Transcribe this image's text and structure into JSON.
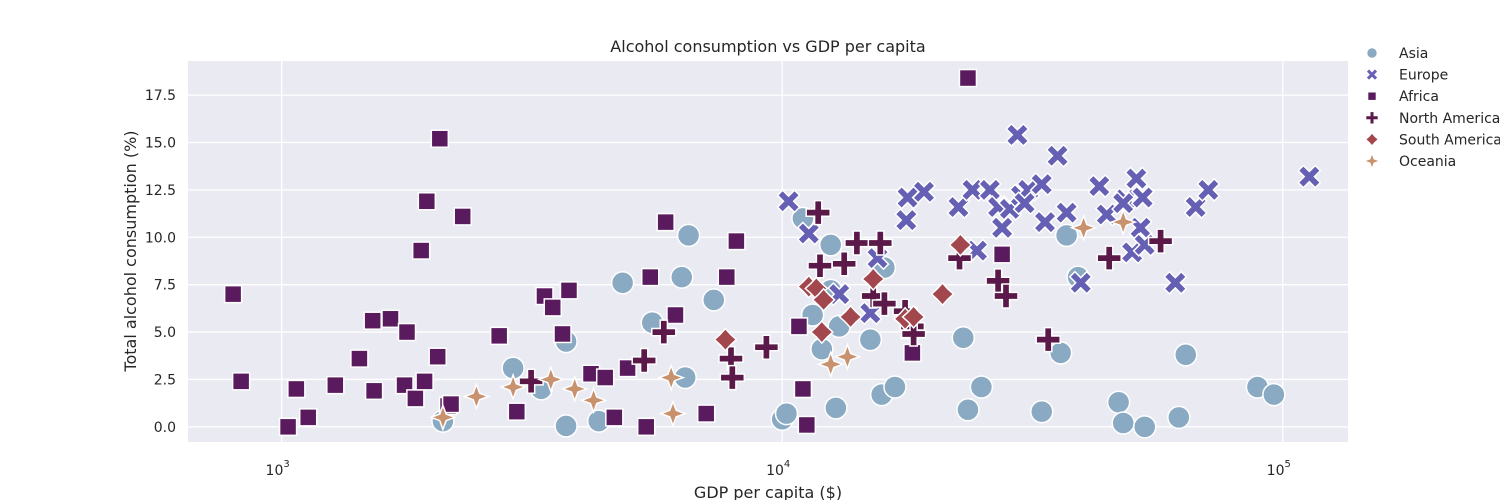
{
  "chart_data": {
    "type": "scatter",
    "title": "Alcohol consumption vs GDP per capita",
    "xlabel": "GDP per capita ($)",
    "ylabel": "Total alcohol consumption (%)",
    "xscale": "log",
    "xlim": [
      650,
      135000
    ],
    "ylim": [
      -0.8,
      19.3
    ],
    "yticks": [
      0.0,
      2.5,
      5.0,
      7.5,
      10.0,
      12.5,
      15.0,
      17.5
    ],
    "ytick_labels": [
      "0.0",
      "2.5",
      "5.0",
      "7.5",
      "10.0",
      "12.5",
      "15.0",
      "17.5"
    ],
    "xticks": [
      {
        "value": 1000,
        "base": "10",
        "exp": "3"
      },
      {
        "value": 10000,
        "base": "10",
        "exp": "4"
      },
      {
        "value": 100000,
        "base": "10",
        "exp": "5"
      }
    ],
    "grid": true,
    "background": "#eaeaf2",
    "legend_position": "outside-top-right",
    "series": [
      {
        "name": "Asia",
        "marker": "circle",
        "color": "#89aac2",
        "points": [
          [
            6500,
            10.1
          ],
          [
            11000,
            11.0
          ],
          [
            12500,
            9.6
          ],
          [
            16000,
            8.4
          ],
          [
            4800,
            7.6
          ],
          [
            6300,
            7.9
          ],
          [
            7300,
            6.7
          ],
          [
            12500,
            7.2
          ],
          [
            11500,
            5.9
          ],
          [
            5500,
            5.5
          ],
          [
            3700,
            4.5
          ],
          [
            13000,
            5.3
          ],
          [
            15000,
            4.6
          ],
          [
            2900,
            3.1
          ],
          [
            3300,
            2.0
          ],
          [
            12000,
            4.1
          ],
          [
            6400,
            2.6
          ],
          [
            10000,
            0.4
          ],
          [
            10200,
            0.7
          ],
          [
            12800,
            1.0
          ],
          [
            15800,
            1.7
          ],
          [
            16800,
            2.1
          ],
          [
            3700,
            0.05
          ],
          [
            4300,
            0.3
          ],
          [
            2100,
            0.3
          ],
          [
            23000,
            4.7
          ],
          [
            25000,
            2.1
          ],
          [
            23500,
            0.9
          ],
          [
            33000,
            0.8
          ],
          [
            36000,
            3.9
          ],
          [
            37000,
            10.1
          ],
          [
            39000,
            7.9
          ],
          [
            47000,
            1.3
          ],
          [
            48000,
            0.2
          ],
          [
            53000,
            0.0
          ],
          [
            62000,
            0.5
          ],
          [
            64000,
            3.8
          ],
          [
            89000,
            2.1
          ],
          [
            96000,
            1.7
          ]
        ]
      },
      {
        "name": "Europe",
        "marker": "x",
        "color": "#6560b4",
        "points": [
          [
            10300,
            11.9
          ],
          [
            11300,
            10.2
          ],
          [
            13000,
            7.0
          ],
          [
            15000,
            6.0
          ],
          [
            15500,
            8.9
          ],
          [
            17800,
            12.1
          ],
          [
            17700,
            10.9
          ],
          [
            19200,
            12.4
          ],
          [
            22500,
            11.6
          ],
          [
            24000,
            12.5
          ],
          [
            24500,
            9.3
          ],
          [
            26000,
            12.5
          ],
          [
            27000,
            11.6
          ],
          [
            27500,
            10.5
          ],
          [
            28500,
            11.5
          ],
          [
            30000,
            12.2
          ],
          [
            31000,
            12.5
          ],
          [
            30500,
            11.8
          ],
          [
            29500,
            15.4
          ],
          [
            33000,
            12.8
          ],
          [
            33500,
            10.8
          ],
          [
            35500,
            14.3
          ],
          [
            37000,
            11.3
          ],
          [
            39500,
            7.6
          ],
          [
            43000,
            12.7
          ],
          [
            44500,
            11.2
          ],
          [
            48500,
            12.0
          ],
          [
            48000,
            11.8
          ],
          [
            50000,
            9.2
          ],
          [
            51000,
            13.1
          ],
          [
            52000,
            10.5
          ],
          [
            52500,
            12.1
          ],
          [
            53000,
            9.6
          ],
          [
            61000,
            7.6
          ],
          [
            67000,
            11.6
          ],
          [
            71000,
            12.5
          ],
          [
            113000,
            13.2
          ]
        ]
      },
      {
        "name": "Africa",
        "marker": "square",
        "color": "#591a5e",
        "points": [
          [
            800,
            7.0
          ],
          [
            830,
            2.4
          ],
          [
            1030,
            0.0
          ],
          [
            1070,
            2.0
          ],
          [
            1130,
            0.5
          ],
          [
            1280,
            2.2
          ],
          [
            1430,
            3.6
          ],
          [
            1520,
            5.6
          ],
          [
            1530,
            1.9
          ],
          [
            1650,
            5.7
          ],
          [
            1760,
            2.2
          ],
          [
            1780,
            5.0
          ],
          [
            1850,
            1.5
          ],
          [
            1900,
            9.3
          ],
          [
            1930,
            2.4
          ],
          [
            1950,
            11.9
          ],
          [
            2050,
            3.7
          ],
          [
            2070,
            15.2
          ],
          [
            2150,
            1.1
          ],
          [
            2180,
            1.2
          ],
          [
            2300,
            11.1
          ],
          [
            2720,
            4.8
          ],
          [
            2950,
            0.8
          ],
          [
            3350,
            6.9
          ],
          [
            3480,
            6.3
          ],
          [
            3640,
            4.9
          ],
          [
            3750,
            7.2
          ],
          [
            4150,
            2.8
          ],
          [
            4430,
            2.6
          ],
          [
            4620,
            0.5
          ],
          [
            4910,
            3.1
          ],
          [
            5350,
            0.0
          ],
          [
            5450,
            7.9
          ],
          [
            5850,
            10.8
          ],
          [
            6120,
            5.9
          ],
          [
            7050,
            0.7
          ],
          [
            7750,
            7.9
          ],
          [
            8100,
            9.8
          ],
          [
            10800,
            5.3
          ],
          [
            11000,
            2.0
          ],
          [
            11200,
            0.1
          ],
          [
            18200,
            3.9
          ],
          [
            18000,
            5.1
          ],
          [
            23500,
            18.4
          ],
          [
            27500,
            9.1
          ]
        ]
      },
      {
        "name": "North America",
        "marker": "plus",
        "color": "#5a1948",
        "points": [
          [
            3150,
            2.4
          ],
          [
            5300,
            3.5
          ],
          [
            5800,
            5.0
          ],
          [
            7900,
            3.6
          ],
          [
            7950,
            2.6
          ],
          [
            9300,
            4.2
          ],
          [
            11800,
            11.3
          ],
          [
            11900,
            8.5
          ],
          [
            13300,
            8.6
          ],
          [
            14100,
            9.7
          ],
          [
            15700,
            9.7
          ],
          [
            15200,
            6.9
          ],
          [
            16000,
            6.5
          ],
          [
            17600,
            6.1
          ],
          [
            18200,
            5.3
          ],
          [
            18300,
            4.9
          ],
          [
            22600,
            8.9
          ],
          [
            27000,
            7.7
          ],
          [
            28000,
            6.9
          ],
          [
            34000,
            4.6
          ],
          [
            45000,
            8.9
          ],
          [
            57000,
            9.8
          ]
        ]
      },
      {
        "name": "South America",
        "marker": "diamond",
        "color": "#a3474e",
        "points": [
          [
            7700,
            4.6
          ],
          [
            11300,
            7.4
          ],
          [
            11700,
            7.3
          ],
          [
            12100,
            6.7
          ],
          [
            12000,
            5.0
          ],
          [
            13700,
            5.8
          ],
          [
            15200,
            7.8
          ],
          [
            17600,
            5.7
          ],
          [
            18300,
            5.8
          ],
          [
            20900,
            7.0
          ],
          [
            22700,
            9.6
          ]
        ]
      },
      {
        "name": "Oceania",
        "marker": "star4",
        "color": "#c9926e",
        "points": [
          [
            2100,
            0.5
          ],
          [
            2450,
            1.6
          ],
          [
            2900,
            2.1
          ],
          [
            3450,
            2.5
          ],
          [
            3850,
            2.0
          ],
          [
            4200,
            1.4
          ],
          [
            6000,
            2.6
          ],
          [
            6050,
            0.7
          ],
          [
            12500,
            3.3
          ],
          [
            13500,
            3.7
          ],
          [
            40000,
            10.5
          ],
          [
            48000,
            10.8
          ]
        ]
      }
    ]
  }
}
